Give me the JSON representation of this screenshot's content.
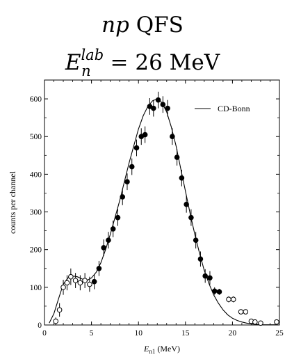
{
  "chart_data": {
    "type": "scatter",
    "title_line1": "np QFS",
    "title_line2_base": "E",
    "title_line2_sub": "n",
    "title_line2_sup": "lab",
    "title_line2_rest": " = 26 MeV",
    "xlabel_base": "E",
    "xlabel_sub": "n1",
    "xlabel_rest": " (MeV)",
    "ylabel": "counts per channel",
    "xlim": [
      0,
      25
    ],
    "ylim": [
      0,
      650
    ],
    "xticks": [
      0,
      5,
      10,
      15,
      20,
      25
    ],
    "yticks": [
      0,
      100,
      200,
      300,
      400,
      500,
      600
    ],
    "legend": {
      "label": "CD-Bonn",
      "placement": "top-right"
    },
    "series": [
      {
        "marker": "open-circle",
        "points": [
          {
            "x": 1.2,
            "y": 10,
            "err": 10
          },
          {
            "x": 1.6,
            "y": 40,
            "err": 18
          },
          {
            "x": 2.0,
            "y": 100,
            "err": 20
          },
          {
            "x": 2.4,
            "y": 112,
            "err": 20
          },
          {
            "x": 2.8,
            "y": 128,
            "err": 22
          },
          {
            "x": 3.3,
            "y": 118,
            "err": 20
          },
          {
            "x": 3.8,
            "y": 112,
            "err": 20
          },
          {
            "x": 4.3,
            "y": 118,
            "err": 20
          },
          {
            "x": 4.8,
            "y": 108,
            "err": 20
          },
          {
            "x": 19.6,
            "y": 68,
            "err": 8
          },
          {
            "x": 20.1,
            "y": 68,
            "err": 8
          },
          {
            "x": 20.9,
            "y": 35,
            "err": 6
          },
          {
            "x": 21.4,
            "y": 35,
            "err": 6
          },
          {
            "x": 22.0,
            "y": 10,
            "err": 4
          },
          {
            "x": 22.4,
            "y": 8,
            "err": 4
          },
          {
            "x": 23.0,
            "y": 5,
            "err": 3
          },
          {
            "x": 24.7,
            "y": 8,
            "err": 3
          }
        ]
      },
      {
        "marker": "filled-circle",
        "points": [
          {
            "x": 5.3,
            "y": 115,
            "err": 20
          },
          {
            "x": 5.8,
            "y": 150,
            "err": 20
          },
          {
            "x": 6.3,
            "y": 205,
            "err": 22
          },
          {
            "x": 6.8,
            "y": 225,
            "err": 22
          },
          {
            "x": 7.3,
            "y": 255,
            "err": 22
          },
          {
            "x": 7.8,
            "y": 285,
            "err": 22
          },
          {
            "x": 8.3,
            "y": 340,
            "err": 22
          },
          {
            "x": 8.8,
            "y": 380,
            "err": 22
          },
          {
            "x": 9.3,
            "y": 420,
            "err": 22
          },
          {
            "x": 9.8,
            "y": 470,
            "err": 22
          },
          {
            "x": 10.3,
            "y": 500,
            "err": 22
          },
          {
            "x": 10.7,
            "y": 505,
            "err": 22
          },
          {
            "x": 11.2,
            "y": 580,
            "err": 22
          },
          {
            "x": 11.6,
            "y": 575,
            "err": 22
          },
          {
            "x": 12.1,
            "y": 597,
            "err": 22
          },
          {
            "x": 12.6,
            "y": 585,
            "err": 22
          },
          {
            "x": 13.1,
            "y": 575,
            "err": 22
          },
          {
            "x": 13.6,
            "y": 500,
            "err": 22
          },
          {
            "x": 14.1,
            "y": 445,
            "err": 22
          },
          {
            "x": 14.6,
            "y": 390,
            "err": 22
          },
          {
            "x": 15.1,
            "y": 320,
            "err": 22
          },
          {
            "x": 15.6,
            "y": 285,
            "err": 22
          },
          {
            "x": 16.1,
            "y": 225,
            "err": 22
          },
          {
            "x": 16.6,
            "y": 175,
            "err": 20
          },
          {
            "x": 17.1,
            "y": 130,
            "err": 18
          },
          {
            "x": 17.6,
            "y": 125,
            "err": 18
          },
          {
            "x": 18.1,
            "y": 90,
            "err": 10
          },
          {
            "x": 18.6,
            "y": 88,
            "err": 8
          }
        ]
      }
    ],
    "curve": {
      "name": "CD-Bonn",
      "x": [
        0.5,
        1,
        1.5,
        2,
        2.5,
        3,
        3.5,
        4,
        4.5,
        5,
        5.5,
        6,
        6.5,
        7,
        7.5,
        8,
        8.5,
        9,
        9.5,
        10,
        10.5,
        11,
        11.5,
        12,
        12.5,
        13,
        13.5,
        14,
        14.5,
        15,
        15.5,
        16,
        16.5,
        17,
        17.5,
        18,
        18.5,
        19,
        19.5,
        20,
        20.5,
        21,
        21.5,
        22,
        22.5,
        23,
        23.5,
        24,
        24.5,
        25
      ],
      "y": [
        5,
        30,
        70,
        108,
        125,
        130,
        128,
        122,
        118,
        125,
        140,
        165,
        200,
        240,
        285,
        330,
        380,
        430,
        475,
        520,
        555,
        580,
        595,
        600,
        590,
        565,
        525,
        475,
        415,
        355,
        295,
        240,
        190,
        145,
        110,
        80,
        58,
        40,
        27,
        18,
        12,
        8,
        5,
        3,
        2,
        1,
        0.5,
        0.5,
        0.5,
        0
      ]
    }
  }
}
